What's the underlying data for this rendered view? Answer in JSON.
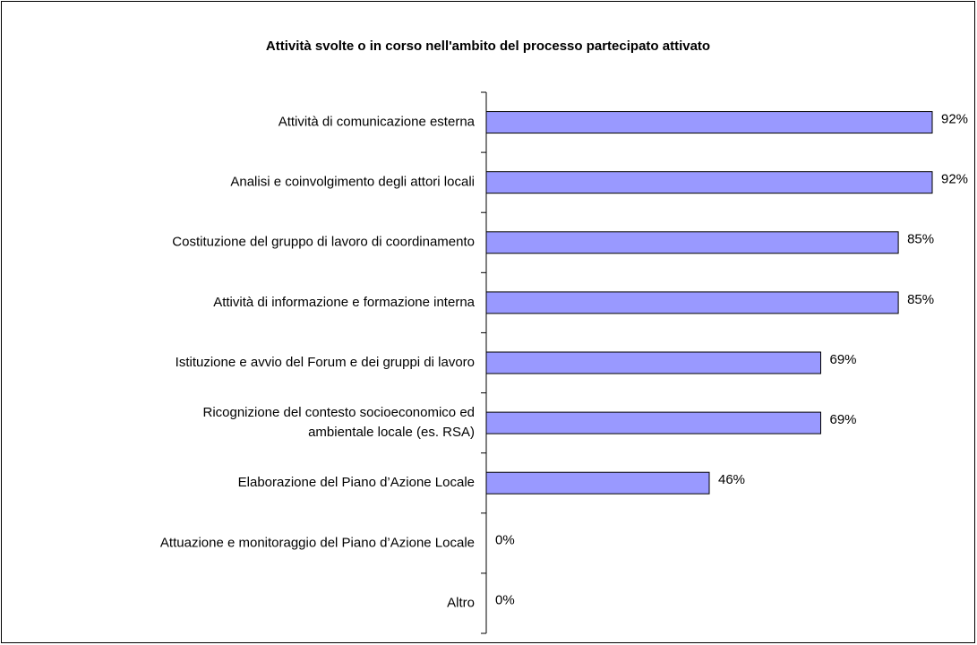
{
  "chart_data": {
    "type": "bar",
    "orientation": "horizontal",
    "title": "Attività svolte o in corso nell'ambito del processo partecipato attivato",
    "categories": [
      "Attività di comunicazione esterna",
      "Analisi e coinvolgimento degli attori locali",
      "Costituzione del gruppo di lavoro di coordinamento",
      "Attività di informazione e formazione interna",
      "Istituzione e avvio del Forum e dei gruppi di lavoro",
      "Ricognizione del contesto socioeconomico ed\nambientale locale (es. RSA)",
      "Elaborazione del Piano d’Azione Locale",
      "Attuazione e monitoraggio del Piano d’Azione Locale",
      "Altro"
    ],
    "values": [
      92,
      92,
      85,
      85,
      69,
      69,
      46,
      0,
      0
    ],
    "value_labels": [
      "92%",
      "92%",
      "85%",
      "85%",
      "69%",
      "69%",
      "46%",
      "0%",
      "0%"
    ],
    "color": "#9999ff"
  }
}
